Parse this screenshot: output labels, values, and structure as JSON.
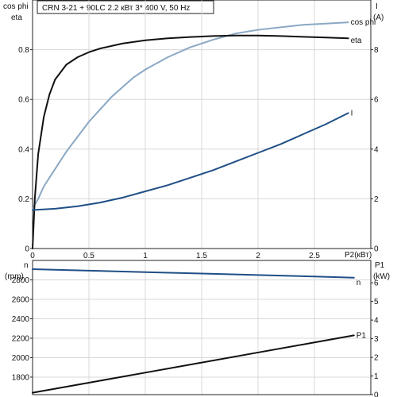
{
  "chart_data": [
    {
      "type": "line",
      "title": "CRN 3-21 + 90LC    2.2 кВт   3* 400 V, 50 Hz",
      "xlabel": "P2(кВт)",
      "xlim": [
        0,
        3.0
      ],
      "xticks": [
        "0",
        "0.5",
        "1",
        "1.5",
        "2",
        "2.5"
      ],
      "xtick_values": [
        0,
        0.5,
        1,
        1.5,
        2,
        2.5
      ],
      "ylabel_left": [
        "cos phi",
        "eta"
      ],
      "ylim_left": [
        0,
        1.0
      ],
      "yticks_left": [
        "0",
        "0.2",
        "0.4",
        "0.6",
        "0.8"
      ],
      "ytick_values_left": [
        0,
        0.2,
        0.4,
        0.6,
        0.8
      ],
      "ylabel_right": [
        "I",
        "(A)"
      ],
      "ylim_right": [
        0,
        10
      ],
      "yticks_right": [
        "0",
        "2",
        "4",
        "6",
        "8"
      ],
      "ytick_values_right": [
        0,
        2,
        4,
        6,
        8
      ],
      "grid": true,
      "series": [
        {
          "name": "cos phi",
          "axis": "left",
          "color": "#8aa8c4",
          "x": [
            0,
            0.05,
            0.1,
            0.2,
            0.3,
            0.4,
            0.5,
            0.6,
            0.7,
            0.8,
            0.9,
            1.0,
            1.2,
            1.4,
            1.6,
            1.8,
            2.0,
            2.2,
            2.4,
            2.6,
            2.8
          ],
          "y": [
            0.16,
            0.2,
            0.25,
            0.32,
            0.39,
            0.45,
            0.51,
            0.56,
            0.61,
            0.65,
            0.69,
            0.72,
            0.77,
            0.81,
            0.84,
            0.865,
            0.88,
            0.89,
            0.9,
            0.905,
            0.91
          ]
        },
        {
          "name": "eta",
          "axis": "left",
          "color": "#111111",
          "x": [
            0,
            0.02,
            0.05,
            0.1,
            0.15,
            0.2,
            0.3,
            0.4,
            0.5,
            0.6,
            0.8,
            1.0,
            1.2,
            1.4,
            1.6,
            1.8,
            2.0,
            2.2,
            2.4,
            2.6,
            2.8
          ],
          "y": [
            0.0,
            0.2,
            0.38,
            0.53,
            0.62,
            0.68,
            0.74,
            0.77,
            0.79,
            0.805,
            0.825,
            0.838,
            0.846,
            0.851,
            0.855,
            0.857,
            0.857,
            0.855,
            0.852,
            0.849,
            0.846
          ]
        },
        {
          "name": "I",
          "axis": "right",
          "color": "#1f4f86",
          "x": [
            0,
            0.2,
            0.4,
            0.6,
            0.8,
            1.0,
            1.2,
            1.4,
            1.6,
            1.8,
            2.0,
            2.2,
            2.4,
            2.6,
            2.8
          ],
          "y": [
            1.55,
            1.6,
            1.7,
            1.85,
            2.05,
            2.3,
            2.55,
            2.85,
            3.15,
            3.5,
            3.85,
            4.2,
            4.6,
            5.0,
            5.45
          ]
        }
      ]
    },
    {
      "type": "line",
      "title": "",
      "xlabel": "",
      "xlim": [
        0,
        3.0
      ],
      "ylabel_left": [
        "n",
        "(rpm)"
      ],
      "ylim_left": [
        1620,
        3000
      ],
      "yticks_left": [
        "1800",
        "2000",
        "2200",
        "2400",
        "2600",
        "2800"
      ],
      "ytick_values_left": [
        1800,
        2000,
        2200,
        2400,
        2600,
        2800
      ],
      "ylabel_right": [
        "P1",
        "(kW)"
      ],
      "ylim_right": [
        0,
        7.2
      ],
      "yticks_right": [
        "0",
        "1",
        "2",
        "3",
        "4",
        "5",
        "6"
      ],
      "ytick_values_right": [
        0,
        1,
        2,
        3,
        4,
        5,
        6
      ],
      "grid": true,
      "series": [
        {
          "name": "n",
          "axis": "left",
          "color": "#1f4f86",
          "x": [
            0,
            0.5,
            1.0,
            1.5,
            2.0,
            2.5,
            2.85
          ],
          "y": [
            2910,
            2895,
            2880,
            2865,
            2850,
            2835,
            2822
          ]
        },
        {
          "name": "P1",
          "axis": "right",
          "color": "#111111",
          "x": [
            0,
            0.5,
            1.0,
            1.5,
            2.0,
            2.5,
            2.85
          ],
          "y": [
            0.1,
            0.64,
            1.18,
            1.72,
            2.26,
            2.8,
            3.18
          ]
        }
      ]
    }
  ]
}
